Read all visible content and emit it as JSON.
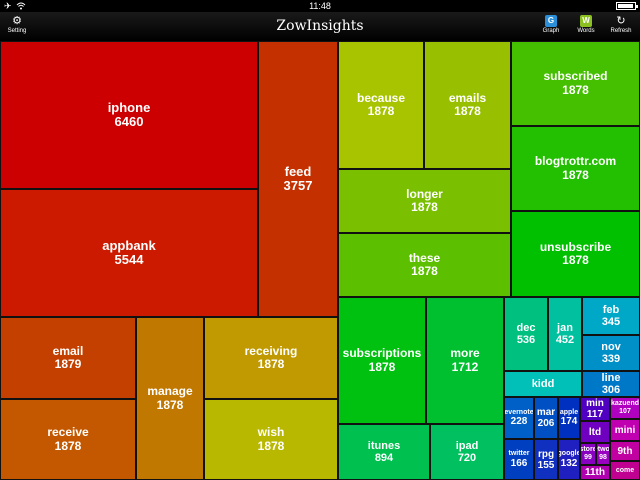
{
  "status": {
    "time": "11:48"
  },
  "nav": {
    "title": "ZowInsights",
    "setting_label": "Setting",
    "graph_label": "Graph",
    "words_label": "Words",
    "refresh_label": "Refresh",
    "graph_letter": "G",
    "words_letter": "W"
  },
  "words": [
    {
      "word": "iphone",
      "count": "6460"
    },
    {
      "word": "appbank",
      "count": "5544"
    },
    {
      "word": "feed",
      "count": "3757"
    },
    {
      "word": "email",
      "count": "1879"
    },
    {
      "word": "receive",
      "count": "1878"
    },
    {
      "word": "manage",
      "count": "1878"
    },
    {
      "word": "receiving",
      "count": "1878"
    },
    {
      "word": "wish",
      "count": "1878"
    },
    {
      "word": "because",
      "count": "1878"
    },
    {
      "word": "emails",
      "count": "1878"
    },
    {
      "word": "longer",
      "count": "1878"
    },
    {
      "word": "these",
      "count": "1878"
    },
    {
      "word": "subscribed",
      "count": "1878"
    },
    {
      "word": "blogtrottr.com",
      "count": "1878"
    },
    {
      "word": "unsubscribe",
      "count": "1878"
    },
    {
      "word": "subscriptions",
      "count": "1878"
    },
    {
      "word": "more",
      "count": "1712"
    },
    {
      "word": "itunes",
      "count": "894"
    },
    {
      "word": "ipad",
      "count": "720"
    },
    {
      "word": "dec",
      "count": "536"
    },
    {
      "word": "jan",
      "count": "452"
    },
    {
      "word": "kidd",
      "count": ""
    },
    {
      "word": "feb",
      "count": "345"
    },
    {
      "word": "nov",
      "count": "339"
    },
    {
      "word": "line",
      "count": "306"
    },
    {
      "word": "evernote",
      "count": "228"
    },
    {
      "word": "mar",
      "count": "206"
    },
    {
      "word": "apple",
      "count": "174"
    },
    {
      "word": "twitter",
      "count": "166"
    },
    {
      "word": "rpg",
      "count": "155"
    },
    {
      "word": "google",
      "count": "132"
    },
    {
      "word": "min",
      "count": "117"
    },
    {
      "word": "ltd",
      "count": ""
    },
    {
      "word": "store",
      "count": "99"
    },
    {
      "word": "network",
      "count": "98"
    },
    {
      "word": "11th",
      "count": ""
    },
    {
      "word": "kazuend",
      "count": "107"
    },
    {
      "word": "mini",
      "count": ""
    },
    {
      "word": "9th",
      "count": ""
    },
    {
      "word": "come",
      "count": ""
    }
  ],
  "colors": {
    "iphone": "#cc0000",
    "appbank": "#cc1a00",
    "feed": "#c43000",
    "email": "#c44000",
    "receive": "#c45800",
    "manage": "#c07800",
    "receiving": "#c09a00",
    "wish": "#b8b800",
    "because": "#a8c400",
    "emails": "#98c000",
    "longer": "#7ac000",
    "these": "#5cc000",
    "subscribed": "#44c000",
    "blogtrottr.com": "#22c000",
    "unsubscribe": "#00c000",
    "subscriptions": "#00c010",
    "more": "#00c030",
    "itunes": "#00c050",
    "ipad": "#00c060",
    "dec": "#00c080",
    "jan": "#00c0a0",
    "kidd": "#00c0b8",
    "feb": "#00a8c8",
    "nov": "#0090c8",
    "line": "#0078c8",
    "evernote": "#0060c8",
    "mar": "#0050c4",
    "apple": "#0030c0",
    "twitter": "#0040c0",
    "rpg": "#1030c0",
    "google": "#2020c0",
    "min": "#5000c0",
    "ltd": "#7000c0",
    "store": "#8800c0",
    "network": "#9a00c0",
    "11th": "#b000b0",
    "kazuend": "#b000c0",
    "mini": "#c000b0",
    "9th": "#c000a0",
    "come": "#c00090"
  }
}
